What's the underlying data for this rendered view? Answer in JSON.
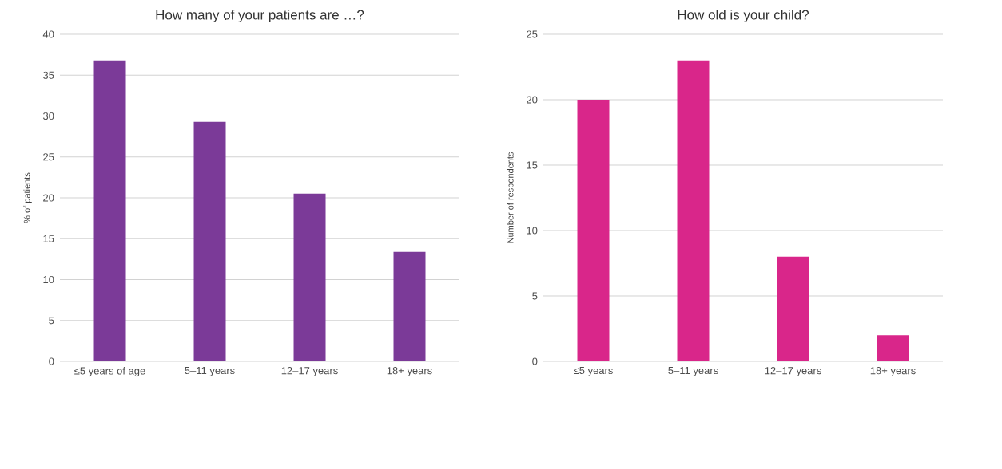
{
  "chart_data": [
    {
      "type": "bar",
      "title": "How many of your patients are …?",
      "ylabel": "% of patients",
      "categories": [
        "≤5 years of age",
        "5–11 years",
        "12–17 years",
        "18+ years"
      ],
      "values": [
        36.8,
        29.3,
        20.5,
        13.4
      ],
      "color": "#7b3a98",
      "ylim": [
        0,
        40
      ],
      "yticks": [
        0,
        5,
        10,
        15,
        20,
        25,
        30,
        35,
        40
      ],
      "grid": "y"
    },
    {
      "type": "bar",
      "title": "How old is your child?",
      "ylabel": "Number of respondents",
      "categories": [
        "≤5 years",
        "5–11 years",
        "12–17 years",
        "18+ years"
      ],
      "values": [
        20,
        23,
        8,
        2
      ],
      "color": "#d9268a",
      "ylim": [
        0,
        25
      ],
      "yticks": [
        0,
        5,
        10,
        15,
        20,
        25
      ],
      "grid": "y"
    }
  ]
}
